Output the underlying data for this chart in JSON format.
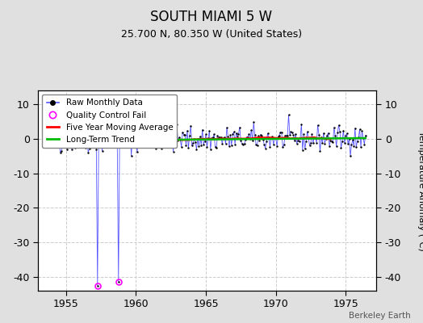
{
  "title": "SOUTH MIAMI 5 W",
  "subtitle": "25.700 N, 80.350 W (United States)",
  "ylabel": "Temperature Anomaly (°C)",
  "credit": "Berkeley Earth",
  "xlim": [
    1953.0,
    1977.2
  ],
  "ylim": [
    -44,
    14
  ],
  "yticks": [
    -40,
    -30,
    -20,
    -10,
    0,
    10
  ],
  "xticks": [
    1955,
    1960,
    1965,
    1970,
    1975
  ],
  "bg_color": "#e0e0e0",
  "plot_bg_color": "#ffffff",
  "raw_color": "#5555ff",
  "dot_color": "#000000",
  "qc_color": "#ff00ff",
  "moving_avg_color": "#ff0000",
  "trend_color": "#00bb00",
  "grid_color": "#cccccc",
  "seed": 42,
  "n_months": 276,
  "start_year": 1953.5,
  "outlier1_year": 1957.25,
  "outlier1_y": -42.5,
  "outlier2_year": 1958.75,
  "outlier2_y": -41.5,
  "noise_std": 1.8,
  "trend_intercept": -0.5,
  "trend_slope": 0.03
}
